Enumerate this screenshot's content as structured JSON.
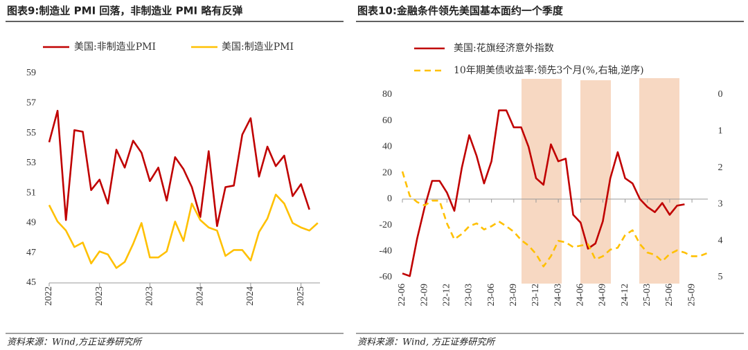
{
  "chart_data": [
    {
      "type": "line",
      "title": "图表9:制造业 PMI 回落，非制造业 PMI 略有反弹",
      "source": "资料来源：Wind,方正证券研究所",
      "categories": [
        "2022",
        null,
        null,
        null,
        null,
        null,
        "2023",
        null,
        null,
        null,
        null,
        null,
        "2023",
        null,
        null,
        null,
        null,
        null,
        "2024",
        null,
        null,
        null,
        null,
        null,
        "2024",
        null,
        null,
        null,
        null,
        null,
        "2025",
        null,
        null
      ],
      "series": [
        {
          "name": "美国:非制造业PMI",
          "color": "#c00000",
          "values": [
            54.4,
            56.5,
            49.2,
            55.2,
            55.1,
            51.2,
            51.9,
            50.3,
            53.9,
            52.7,
            54.5,
            53.7,
            51.8,
            52.7,
            50.5,
            53.4,
            52.6,
            51.4,
            49.4,
            53.8,
            48.8,
            51.4,
            51.5,
            54.9,
            56.0,
            52.1,
            54.1,
            52.8,
            53.5,
            50.8,
            51.6,
            49.9,
            null
          ]
        },
        {
          "name": "美国:制造业PMI",
          "color": "#ffc000",
          "values": [
            50.2,
            49.1,
            48.5,
            47.4,
            47.7,
            46.3,
            47.1,
            46.9,
            46.0,
            46.4,
            47.6,
            49.0,
            46.7,
            46.7,
            47.1,
            49.1,
            47.8,
            50.3,
            49.2,
            48.7,
            48.5,
            46.8,
            47.2,
            47.2,
            46.5,
            48.4,
            49.3,
            50.9,
            50.3,
            49.0,
            48.7,
            48.5,
            49.0
          ]
        }
      ],
      "ylim": [
        45,
        59
      ],
      "yticks": [
        45,
        47,
        49,
        51,
        53,
        55,
        57,
        59
      ],
      "legend": "top"
    },
    {
      "type": "line",
      "title": "图表10:金融条件领先美国基本面约一个季度",
      "source": "资料来源：Wind, 方正证券研究所",
      "categories": [
        "22-06",
        null,
        null,
        "22-09",
        null,
        null,
        "22-12",
        null,
        null,
        "23-03",
        null,
        null,
        "23-06",
        null,
        null,
        "23-09",
        null,
        null,
        "23-12",
        null,
        null,
        "24-03",
        null,
        null,
        "24-06",
        null,
        null,
        "24-09",
        null,
        null,
        "24-12",
        null,
        null,
        "25-03",
        null,
        null,
        "25-06",
        null,
        null,
        "25-09",
        null,
        null
      ],
      "series": [
        {
          "name": "美国:花旗经济意外指数",
          "color": "#c00000",
          "values": [
            -57,
            -59,
            -30,
            -6,
            14,
            14,
            5,
            -9,
            24,
            49,
            33,
            12,
            29,
            68,
            68,
            55,
            55,
            40,
            16,
            11,
            42,
            29,
            31,
            -12,
            -18,
            -38,
            -34,
            -17,
            16,
            36,
            16,
            12,
            0,
            -6,
            -10,
            -3,
            -12,
            -5,
            -4,
            null,
            null,
            null
          ]
        },
        {
          "name": "10年期美债收益率:领先3个月(%,右轴,逆序)",
          "color": "#ffc000",
          "axis": "y2",
          "dashed": true,
          "values": [
            2.1,
            2.77,
            2.94,
            3.03,
            2.9,
            2.9,
            3.52,
            3.96,
            3.81,
            3.6,
            3.52,
            3.69,
            3.6,
            3.47,
            3.6,
            3.75,
            3.98,
            4.13,
            4.36,
            4.7,
            4.42,
            4.0,
            4.04,
            4.17,
            4.13,
            4.09,
            4.51,
            4.42,
            4.24,
            4.19,
            3.84,
            3.71,
            4.09,
            4.32,
            4.38,
            4.56,
            4.36,
            4.26,
            4.32,
            4.42,
            4.42,
            4.34
          ]
        }
      ],
      "ylim": [
        -60,
        80
      ],
      "yticks": [
        -60,
        -40,
        -20,
        0,
        20,
        40,
        60,
        80
      ],
      "y2lim": [
        0,
        5
      ],
      "y2ticks": [
        0,
        1,
        2,
        3,
        4,
        5
      ],
      "y2_reversed": true,
      "legend": "top-left"
    }
  ]
}
